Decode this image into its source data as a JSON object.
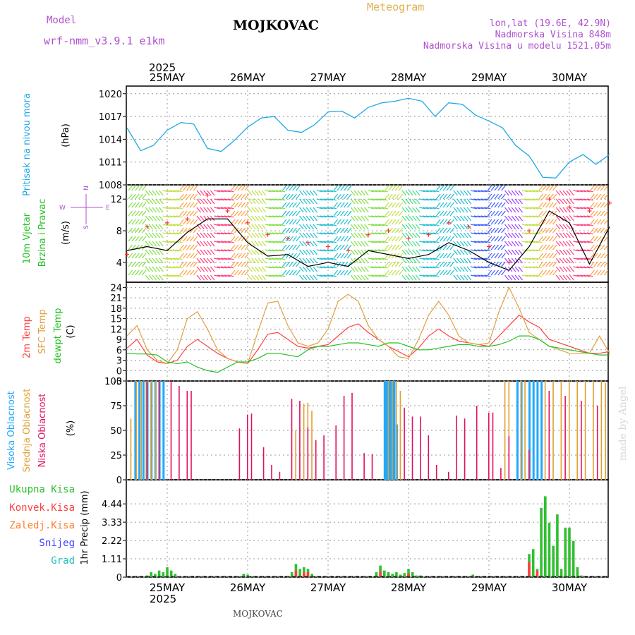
{
  "header": {
    "model_label": "Model",
    "model_name": "wrf-nmm_v3.9.1 e1km",
    "station": "MOJKOVAC",
    "meteogram": "Meteogram",
    "lonlat": "lon,lat (19.6E, 42.9N)",
    "altitude": "Nadmorska Visina 848m",
    "altitude_model": "Nadmorska Visina u modelu 1521.05m"
  },
  "footer": {
    "station": "MOJKOVAC",
    "credit": "made by Angel",
    "year": "2025"
  },
  "colors": {
    "pressure": "#1fa8e6",
    "wind_speed": "#000000",
    "wind_gust": "#ff3030",
    "temp2m": "#ff4040",
    "sfc_temp": "#e0a040",
    "dewpt": "#20c020",
    "cloud_high": "#20a8ff",
    "cloud_mid": "#e0a030",
    "cloud_low": "#e01060",
    "precip_total": "#30c030",
    "precip_conv": "#ff4040",
    "precip_frz": "#ff8030",
    "snow": "#4040ff",
    "hail": "#20c0c0",
    "purple_text": "#b050d0"
  },
  "chart_data": [
    {
      "type": "line",
      "title": "",
      "ylabel_rotated": "Pritisak na nivou mora",
      "unit": "(hPa)",
      "x_top_labels": [
        "25MAY",
        "26MAY",
        "27MAY",
        "28MAY",
        "29MAY",
        "30MAY"
      ],
      "year_top": "2025",
      "ylim": [
        1008,
        1021
      ],
      "yticks": [
        "1020",
        "1017",
        "1014",
        "1011",
        "1008"
      ],
      "ytick_values": [
        1020,
        1017,
        1014,
        1011,
        1008
      ],
      "grid": true,
      "series": [
        {
          "x": [
            0,
            0.17,
            0.33,
            0.5,
            0.67,
            0.83,
            1.0,
            1.17,
            1.33,
            1.5,
            1.67,
            1.83,
            2.0,
            2.17,
            2.33,
            2.5,
            2.67,
            2.83,
            3.0,
            3.17,
            3.33,
            3.5,
            3.67,
            3.83,
            4.0,
            4.17,
            4.33,
            4.5,
            4.67,
            4.83,
            5.0,
            5.17,
            5.33,
            5.5,
            5.67,
            5.83,
            6.0
          ],
          "values": [
            1015.5,
            1012.5,
            1013.2,
            1015.2,
            1016.2,
            1016.0,
            1012.8,
            1012.4,
            1013.8,
            1015.6,
            1016.8,
            1017.0,
            1015.2,
            1014.9,
            1015.9,
            1017.6,
            1017.7,
            1016.8,
            1018.2,
            1018.8,
            1019.0,
            1019.4,
            1019.0,
            1017.0,
            1018.8,
            1018.6,
            1017.2,
            1016.4,
            1015.5,
            1013.2,
            1011.8,
            1009.0,
            1008.9,
            1011.0,
            1012.0,
            1010.7,
            1012.0
          ]
        }
      ]
    },
    {
      "type": "line",
      "title": "",
      "ylabel_rotated": [
        "10m Vjetar",
        "Brzina i Pravac"
      ],
      "unit": "(m/s)",
      "compass": {
        "n": "N",
        "s": "S",
        "e": "E",
        "w": "W"
      },
      "ylim": [
        1.5,
        13.8
      ],
      "yticks": [
        "12",
        "8",
        "4"
      ],
      "ytick_values": [
        12,
        8,
        4
      ],
      "series": [
        {
          "name": "speed",
          "x": [
            0,
            0.25,
            0.5,
            0.75,
            1.0,
            1.25,
            1.5,
            1.75,
            2.0,
            2.25,
            2.5,
            2.75,
            3.0,
            3.25,
            3.5,
            3.75,
            4.0,
            4.25,
            4.5,
            4.75,
            5.0,
            5.25,
            5.5,
            5.75,
            6.0
          ],
          "values": [
            5.5,
            6.0,
            5.5,
            7.8,
            9.5,
            9.5,
            6.5,
            4.8,
            5.0,
            3.5,
            4.0,
            3.5,
            5.5,
            5.0,
            4.5,
            5.0,
            6.5,
            5.5,
            4.0,
            3.0,
            6.0,
            10.5,
            9.0,
            3.8,
            8.5
          ]
        },
        {
          "name": "gust",
          "x": [
            0,
            0.25,
            0.5,
            0.75,
            1.0,
            1.25,
            1.5,
            1.75,
            2.0,
            2.25,
            2.5,
            2.75,
            3.0,
            3.25,
            3.5,
            3.75,
            4.0,
            4.25,
            4.5,
            4.75,
            5.0,
            5.25,
            5.5,
            5.75,
            6.0
          ],
          "values": [
            5.0,
            8.5,
            9.0,
            9.5,
            12.5,
            10.5,
            9.0,
            7.5,
            7.0,
            6.5,
            6.0,
            5.5,
            7.5,
            8.0,
            7.0,
            7.5,
            9.0,
            8.5,
            6.0,
            4.0,
            8.0,
            12.0,
            11.0,
            10.5,
            11.5
          ]
        }
      ]
    },
    {
      "type": "line",
      "title": "",
      "ylabel_rotated": [
        "2m Temp",
        "SFC Temp",
        "dewpt Temp"
      ],
      "unit": "(C)",
      "ylim": [
        -3,
        25.5
      ],
      "yticks": [
        "24",
        "21",
        "18",
        "15",
        "12",
        "9",
        "6",
        "3",
        "0",
        "-3"
      ],
      "ytick_values": [
        24,
        21,
        18,
        15,
        12,
        9,
        6,
        3,
        0,
        -3
      ],
      "x": [
        0,
        0.125,
        0.25,
        0.375,
        0.5,
        0.625,
        0.75,
        0.875,
        1.0,
        1.125,
        1.25,
        1.375,
        1.5,
        1.625,
        1.75,
        1.875,
        2.0,
        2.125,
        2.25,
        2.375,
        2.5,
        2.625,
        2.75,
        2.875,
        3.0,
        3.125,
        3.25,
        3.375,
        3.5,
        3.625,
        3.75,
        3.875,
        4.0,
        4.125,
        4.25,
        4.375,
        4.5,
        4.625,
        4.75,
        4.875,
        5.0,
        5.125,
        5.25,
        5.375,
        5.5,
        5.625,
        5.75,
        5.875,
        6.0
      ],
      "series": [
        {
          "name": "2m Temp",
          "values": [
            6.5,
            9,
            4.5,
            2.5,
            2,
            3,
            7,
            9,
            7,
            5,
            3.5,
            2.5,
            2,
            6,
            10.5,
            11,
            9,
            7,
            6.5,
            7,
            7.5,
            10,
            12.5,
            13.5,
            11,
            9,
            7,
            5.5,
            4,
            6.5,
            10,
            12,
            10,
            8.5,
            8,
            7.5,
            7,
            10,
            13,
            16,
            14,
            12.5,
            9,
            8,
            7,
            6,
            5,
            5,
            5.5
          ]
        },
        {
          "name": "SFC Temp",
          "values": [
            10,
            13,
            6,
            3,
            2,
            6,
            15,
            17,
            12,
            6,
            3.5,
            2.5,
            2,
            11,
            19.5,
            20,
            13,
            8,
            7,
            8,
            12,
            20,
            22,
            20,
            13,
            9,
            7,
            4,
            3.5,
            9,
            16,
            20,
            16,
            10,
            8,
            7.5,
            8,
            17,
            24,
            18,
            11,
            9,
            7,
            6,
            5,
            5,
            5,
            10,
            5
          ]
        },
        {
          "name": "dewpt Temp",
          "values": [
            5,
            4.8,
            4.8,
            4.5,
            2.5,
            2,
            2.5,
            1,
            0,
            -0.5,
            1,
            2.5,
            2.5,
            3.5,
            5,
            5,
            4.5,
            4,
            6,
            7,
            7,
            7.5,
            8,
            8,
            7.5,
            7,
            8,
            8,
            7,
            6,
            6,
            6.5,
            7,
            7.5,
            7.5,
            7,
            7,
            7.5,
            8.5,
            10,
            10,
            9,
            7,
            6.5,
            6,
            5.5,
            5,
            4.5,
            4.5
          ]
        }
      ]
    },
    {
      "type": "bar",
      "title": "",
      "ylabel_rotated": [
        "Visoka Oblacnost",
        "Srednja Oblacnost",
        "Niska Oblacnost"
      ],
      "unit": "(%)",
      "ylim": [
        0,
        100
      ],
      "yticks": [
        "100",
        "75",
        "50",
        "25",
        "0"
      ],
      "ytick_values": [
        100,
        75,
        50,
        25,
        0
      ],
      "series": [
        {
          "name": "Visoka Oblacnost",
          "x": [
            0.1,
            0.15,
            0.2,
            0.25,
            0.3,
            0.35,
            0.4,
            0.45,
            3.2,
            3.22,
            3.24,
            3.26,
            3.28,
            3.3,
            3.32,
            3.35,
            4.85,
            4.9,
            5.0,
            5.05,
            5.1,
            5.15
          ],
          "values": [
            100,
            100,
            100,
            100,
            100,
            100,
            100,
            100,
            100,
            100,
            100,
            100,
            100,
            100,
            100,
            56,
            100,
            100,
            100,
            100,
            100,
            100
          ]
        },
        {
          "name": "Srednja Oblacnost",
          "x": [
            0.05,
            0.12,
            0.18,
            0.24,
            0.3,
            0.36,
            2.1,
            2.2,
            2.25,
            2.3,
            3.25,
            3.3,
            3.35,
            3.4,
            4.7,
            4.75,
            4.9,
            4.95,
            5.2,
            5.3,
            5.4,
            5.5,
            5.6,
            5.7,
            5.8,
            5.9,
            5.95
          ],
          "values": [
            62,
            100,
            100,
            100,
            100,
            100,
            50,
            77,
            78,
            70,
            100,
            100,
            100,
            90,
            100,
            100,
            100,
            100,
            100,
            100,
            100,
            100,
            100,
            100,
            100,
            100,
            98
          ]
        },
        {
          "name": "Niska Oblacnost",
          "x": [
            0.25,
            0.4,
            0.55,
            0.65,
            0.75,
            0.8,
            1.4,
            1.5,
            1.55,
            1.7,
            1.8,
            1.9,
            2.05,
            2.15,
            2.25,
            2.35,
            2.45,
            2.6,
            2.7,
            2.8,
            2.95,
            3.05,
            3.45,
            3.55,
            3.65,
            3.75,
            3.85,
            4.0,
            4.1,
            4.2,
            4.35,
            4.5,
            4.55,
            4.65,
            4.75,
            5.0,
            5.25,
            5.45,
            5.65,
            5.85
          ],
          "values": [
            100,
            100,
            100,
            95,
            90,
            90,
            52,
            66,
            67,
            33,
            15,
            8,
            82,
            80,
            53,
            40,
            45,
            55,
            85,
            88,
            27,
            26,
            73,
            64,
            64,
            45,
            15,
            8,
            65,
            62,
            75,
            68,
            68,
            12,
            44,
            30,
            90,
            85,
            80,
            75
          ]
        }
      ]
    },
    {
      "type": "bar",
      "title": "",
      "ylabel": "1hr Precip (mm)",
      "legend": [
        "Ukupna Kisa",
        "Konvek.Kisa",
        "Zaledj.Kisa",
        "Snijeg",
        "Grad"
      ],
      "ylim": [
        0,
        5.9
      ],
      "yticks": [
        "4.44",
        "3.33",
        "2.22",
        "1.11",
        "0"
      ],
      "ytick_values": [
        4.44,
        3.33,
        2.22,
        1.11,
        0
      ],
      "x_bottom_labels": [
        "25MAY",
        "26MAY",
        "27MAY",
        "28MAY",
        "29MAY",
        "30MAY"
      ],
      "year_bottom": "2025",
      "series": [
        {
          "name": "Ukupna Kisa",
          "x": [
            0.25,
            0.3,
            0.35,
            0.4,
            0.45,
            0.5,
            0.55,
            0.6,
            0.65,
            1.45,
            1.5,
            2.05,
            2.1,
            2.15,
            2.2,
            2.25,
            2.3,
            3.1,
            3.15,
            3.2,
            3.25,
            3.3,
            3.35,
            3.4,
            3.45,
            3.5,
            3.55,
            3.6,
            3.65,
            3.7,
            4.3,
            5.0,
            5.05,
            5.1,
            5.15,
            5.2,
            5.25,
            5.3,
            5.35,
            5.4,
            5.45,
            5.5,
            5.55,
            5.6,
            5.65
          ],
          "values": [
            0.1,
            0.3,
            0.2,
            0.4,
            0.3,
            0.6,
            0.4,
            0.2,
            0.05,
            0.2,
            0.15,
            0.3,
            0.8,
            0.5,
            0.6,
            0.5,
            0.2,
            0.3,
            0.7,
            0.4,
            0.3,
            0.2,
            0.3,
            0.15,
            0.25,
            0.5,
            0.3,
            0.1,
            0.1,
            0.05,
            0.15,
            1.4,
            1.7,
            0.5,
            4.2,
            4.9,
            3.3,
            1.9,
            3.8,
            0.5,
            3.0,
            3.0,
            2.2,
            0.6,
            0.1
          ]
        },
        {
          "name": "Konvek.Kisa",
          "x": [
            2.1,
            2.2,
            2.25,
            3.15,
            3.5,
            5.0,
            5.1
          ],
          "values": [
            0.4,
            0.3,
            0.3,
            0.35,
            0.2,
            0.9,
            0.4
          ]
        }
      ]
    }
  ]
}
